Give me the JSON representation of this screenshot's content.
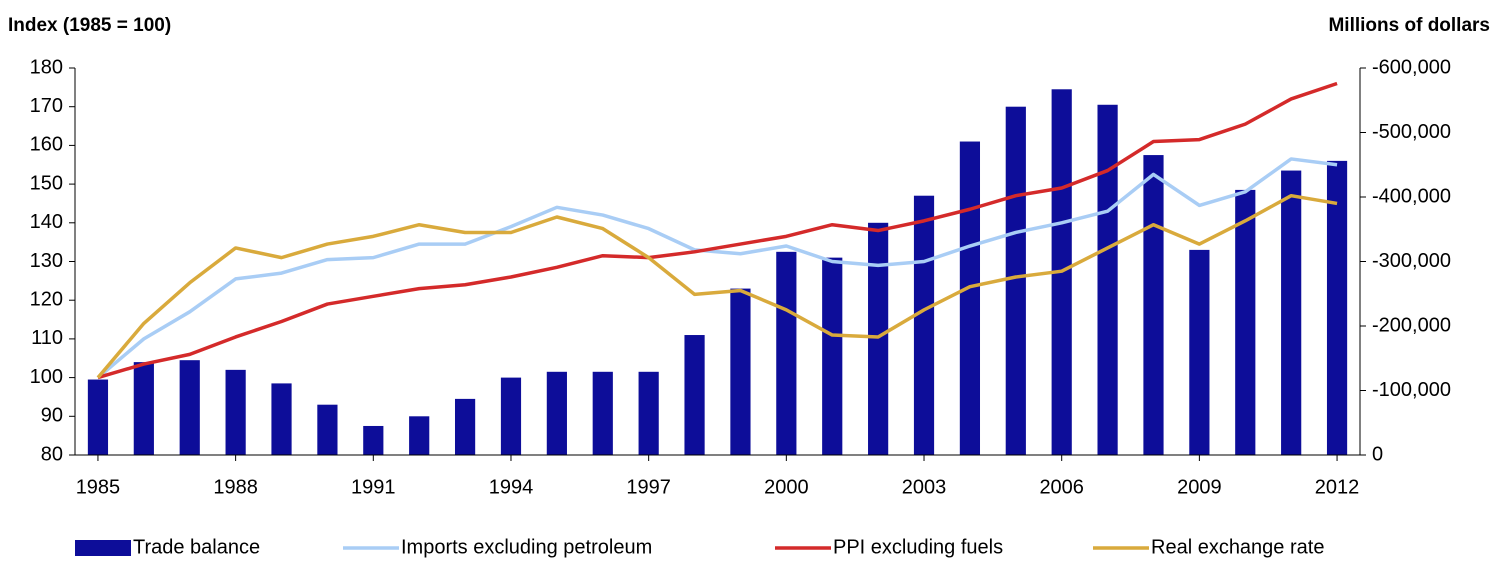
{
  "chart_data": {
    "type": "bar",
    "ylabel": "Index (1985 = 100)",
    "y2label": "Millions of dollars",
    "x": [
      1985,
      1986,
      1987,
      1988,
      1989,
      1990,
      1991,
      1992,
      1993,
      1994,
      1995,
      1996,
      1997,
      1998,
      1999,
      2000,
      2001,
      2002,
      2003,
      2004,
      2005,
      2006,
      2007,
      2008,
      2009,
      2010,
      2011,
      2012
    ],
    "xlim": [
      1984.5,
      2012.5
    ],
    "xticks": [
      1985,
      1988,
      1991,
      1994,
      1997,
      2000,
      2003,
      2006,
      2009,
      2012
    ],
    "ylim": [
      80,
      180
    ],
    "yticks": [
      80,
      90,
      100,
      110,
      120,
      130,
      140,
      150,
      160,
      170,
      180
    ],
    "y2lim": [
      0,
      -600000
    ],
    "y2ticks": [
      0,
      {
        "value": -100000,
        "label": "-100,000"
      },
      {
        "value": -200000,
        "label": "-200,000"
      },
      {
        "value": -300000,
        "label": "-300,000"
      },
      {
        "value": -400000,
        "label": "-400,000"
      },
      {
        "value": -500000,
        "label": "-500,000"
      },
      {
        "value": -600000,
        "label": "-600,000"
      }
    ],
    "legend": "bottom",
    "grid": false,
    "series": [
      {
        "name": "Trade balance",
        "type": "bar",
        "axis": "y2",
        "color": "#0d0d99",
        "values": [
          -117000,
          -144000,
          -147000,
          -132000,
          -111000,
          -78000,
          -45000,
          -60000,
          -87000,
          -120000,
          -129000,
          -129000,
          -129000,
          -186000,
          -258000,
          -315000,
          -306000,
          -360000,
          -402000,
          -486000,
          -540000,
          -567000,
          -543000,
          -465000,
          -318000,
          -411000,
          -441000,
          -456000
        ]
      },
      {
        "name": "Imports excluding petroleum",
        "type": "line",
        "color": "#a9cdf5",
        "values": [
          100,
          110,
          117,
          125.5,
          127,
          130.5,
          131,
          134.5,
          134.5,
          139,
          144,
          142,
          138.5,
          133,
          132,
          134,
          130,
          129,
          130,
          134,
          137.5,
          140,
          143,
          152.5,
          144.5,
          148,
          156.5,
          155
        ]
      },
      {
        "name": "PPI excluding fuels",
        "type": "line",
        "color": "#d42a2a",
        "values": [
          100,
          103.5,
          106,
          110.5,
          114.5,
          119,
          121,
          123,
          124,
          126,
          128.5,
          131.5,
          131,
          132.5,
          134.5,
          136.5,
          139.5,
          138,
          140.5,
          143.5,
          147,
          149,
          153.5,
          161,
          161.5,
          165.5,
          172,
          176
        ]
      },
      {
        "name": "Real exchange rate",
        "type": "line",
        "color": "#d9aa3c",
        "values": [
          100,
          114,
          124.5,
          133.5,
          131,
          134.5,
          136.5,
          139.5,
          137.5,
          137.5,
          141.5,
          138.5,
          131,
          121.5,
          122.5,
          117.5,
          111,
          110.5,
          117.5,
          123.5,
          126,
          127.5,
          133.5,
          139.5,
          134.5,
          140.5,
          147,
          145
        ]
      }
    ]
  }
}
